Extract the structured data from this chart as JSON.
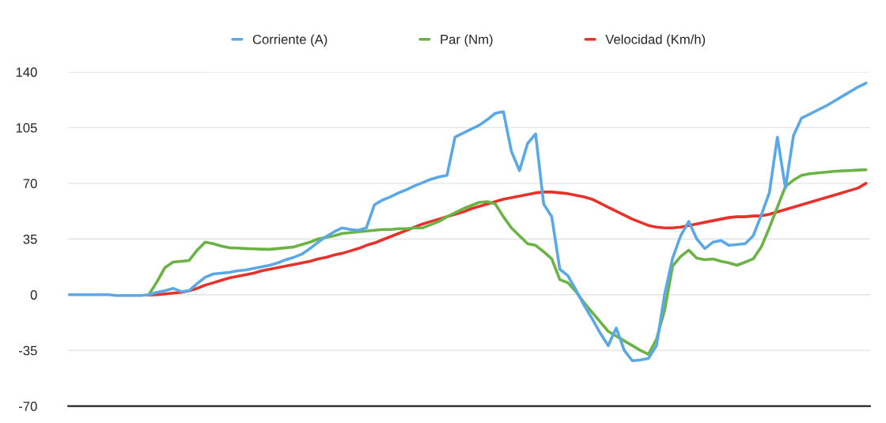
{
  "chart_data": {
    "type": "line",
    "categories": [
      null,
      null,
      null,
      null,
      null,
      null,
      null,
      null,
      null,
      null,
      null,
      null,
      null,
      null,
      null,
      null,
      null,
      null,
      null,
      null,
      null,
      null,
      null,
      null,
      null,
      null,
      null,
      null,
      null,
      null,
      null,
      null,
      null,
      null,
      null,
      null,
      null,
      null,
      null,
      null,
      null,
      null,
      null,
      null,
      null,
      null,
      null,
      null,
      null,
      null,
      null,
      null,
      null,
      null,
      null,
      null,
      null,
      null,
      null,
      null,
      null,
      null,
      null,
      null,
      null,
      null,
      null,
      null,
      null,
      null,
      null,
      null,
      null,
      null,
      null,
      null,
      null,
      null,
      null,
      null,
      null,
      null,
      null,
      null,
      null,
      null,
      null,
      null,
      null,
      null,
      null,
      null,
      null,
      null,
      null,
      null,
      null,
      null,
      null,
      null
    ],
    "ylim": [
      -70,
      140
    ],
    "yticks": [
      -70,
      -35,
      0,
      35,
      70,
      105,
      140
    ],
    "tick_labels": "y",
    "grid": "y",
    "legend": "top",
    "line_style": "solid",
    "marker": "none",
    "series": [
      {
        "name": "Corriente (A)",
        "color": "#5aa9e6",
        "values": [
          0,
          0,
          0,
          0,
          0,
          0,
          -0.5,
          -0.5,
          -0.5,
          -0.5,
          0,
          1.5,
          2.5,
          4,
          2,
          2.5,
          7,
          11,
          13,
          13.5,
          14,
          15,
          15.5,
          16.5,
          17.5,
          18.5,
          20,
          22,
          23.5,
          25.5,
          29,
          33,
          36.5,
          39.5,
          42,
          41,
          40.5,
          42,
          56.5,
          59.5,
          61.5,
          64,
          66,
          68.5,
          70.5,
          72.5,
          74,
          75,
          99,
          101.5,
          104,
          106.5,
          110,
          114,
          115,
          90,
          78,
          95,
          101,
          57,
          49,
          16,
          12,
          3,
          -6.5,
          -15,
          -24,
          -32,
          -21,
          -35,
          -41.5,
          -41,
          -40,
          -32,
          0,
          23,
          37,
          46,
          35,
          29,
          33,
          34,
          31,
          31.5,
          32,
          37,
          50,
          64,
          99,
          67,
          100,
          111,
          113.5,
          116,
          118.5,
          121.5,
          124.5,
          127.5,
          130.5,
          133
        ]
      },
      {
        "name": "Par (Nm)",
        "color": "#6ab344",
        "values": [
          null,
          null,
          null,
          null,
          null,
          null,
          null,
          null,
          null,
          null,
          0,
          8,
          17,
          20.5,
          21,
          21.5,
          28,
          33,
          32,
          30.5,
          29.5,
          29.3,
          29,
          28.8,
          28.6,
          28.5,
          29,
          29.5,
          30,
          31.5,
          33,
          35,
          36,
          37,
          38.5,
          39,
          39.5,
          40,
          40.5,
          41,
          41,
          41.5,
          41.5,
          42,
          42,
          44,
          46,
          49,
          51.5,
          54,
          56,
          58,
          58.5,
          57,
          49,
          42,
          37,
          32,
          31,
          27,
          22.5,
          9.5,
          7.5,
          2,
          -5,
          -11,
          -17,
          -23,
          -26,
          -29,
          -32,
          -35,
          -37.5,
          -28,
          -10,
          18,
          24,
          28,
          23,
          22,
          22.5,
          21,
          20,
          18.5,
          20.5,
          22.5,
          30,
          42,
          55,
          68,
          72,
          75,
          76,
          76.5,
          77,
          77.5,
          77.8,
          78,
          78.3,
          78.5
        ]
      },
      {
        "name": "Velocidad (Km/h)",
        "color": "#e8312a",
        "values": [
          null,
          null,
          null,
          null,
          null,
          null,
          null,
          null,
          null,
          null,
          -0.3,
          0,
          0.5,
          1,
          1.5,
          2.5,
          4,
          6,
          7.5,
          9,
          10.5,
          11.5,
          12.5,
          13.5,
          15,
          16,
          17,
          18,
          19,
          20,
          21,
          22.5,
          23.5,
          25,
          26,
          27.5,
          29,
          31,
          32.5,
          34.5,
          36.5,
          38.5,
          40.5,
          42.5,
          44.5,
          46,
          47.5,
          49,
          50.5,
          52,
          54,
          55.5,
          57,
          58.5,
          60,
          61,
          62,
          63,
          64,
          64.5,
          64.5,
          64,
          63.5,
          62.5,
          61.5,
          60,
          57.5,
          55,
          52.5,
          50,
          47.5,
          45.5,
          43.5,
          42.5,
          42,
          42,
          42.5,
          43.5,
          44.5,
          45.5,
          46.5,
          47.5,
          48.5,
          49,
          49,
          49.5,
          49.5,
          50.5,
          52,
          53.5,
          55,
          56.5,
          58,
          59.5,
          61,
          62.5,
          64,
          65.5,
          67,
          70
        ]
      }
    ]
  }
}
